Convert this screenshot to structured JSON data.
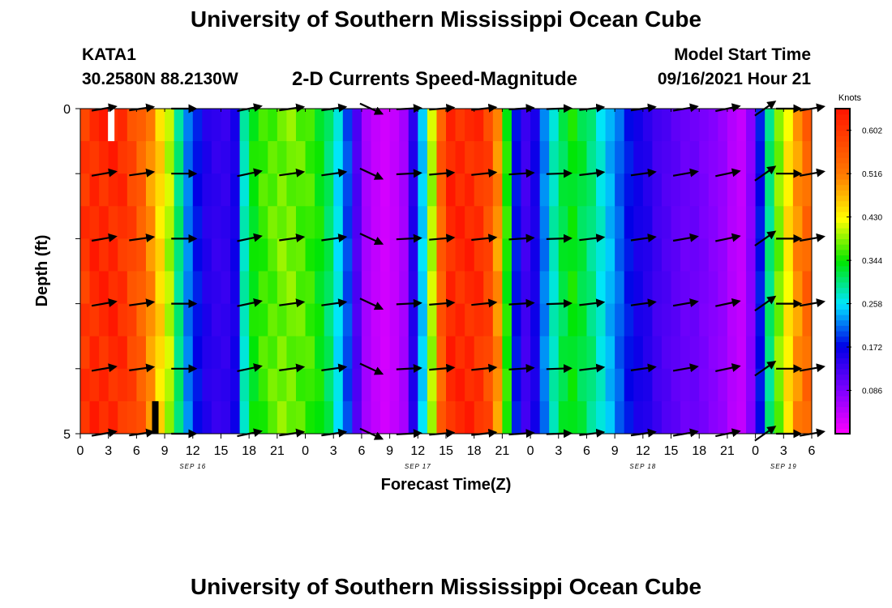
{
  "page": {
    "title_top": "University of Southern Mississippi Ocean Cube",
    "title_bottom": "University of Southern Mississippi Ocean Cube",
    "station": "KATA1",
    "coordinates": "30.2580N  88.2130W",
    "subtitle": "2-D Currents Speed-Magnitude",
    "model_start_label": "Model Start Time",
    "model_start_value": "09/16/2021 Hour 21"
  },
  "chart_data": {
    "type": "heatmap",
    "title": "2-D Currents Speed-Magnitude",
    "xlabel": "Forecast Time(Z)",
    "ylabel": "Depth (ft)",
    "x_hours": [
      0,
      3,
      6,
      9,
      12,
      15,
      18,
      21,
      24,
      27,
      30,
      33,
      36,
      39,
      42,
      45,
      48,
      51,
      54,
      57,
      60,
      63,
      66,
      69,
      72,
      75,
      78
    ],
    "x_tick_labels": [
      "0",
      "3",
      "6",
      "9",
      "12",
      "15",
      "18",
      "21",
      "0",
      "3",
      "6",
      "9",
      "12",
      "15",
      "18",
      "21",
      "0",
      "3",
      "6",
      "9",
      "12",
      "15",
      "18",
      "21",
      "0",
      "3",
      "6"
    ],
    "date_labels": [
      {
        "text": "SEP 16",
        "hour": 12
      },
      {
        "text": "SEP 17",
        "hour": 36
      },
      {
        "text": "SEP 18",
        "hour": 60
      },
      {
        "text": "SEP 19",
        "hour": 75
      }
    ],
    "xlim": [
      0,
      78
    ],
    "ylim": [
      0,
      5
    ],
    "y_axis_inverted": true,
    "y_tick_labels": [
      "0",
      "5"
    ],
    "y_tick_values": [
      0,
      1,
      2,
      3,
      4,
      5
    ],
    "colorbar": {
      "units": "Knots",
      "min": 0.0,
      "max": 0.645,
      "tick_values": [
        0.086,
        0.172,
        0.258,
        0.344,
        0.43,
        0.516,
        0.602
      ],
      "tick_labels": [
        "0.086",
        "0.172",
        "0.258",
        "0.344",
        "0.430",
        "0.516",
        "0.602"
      ]
    },
    "speed_profile": {
      "hours": [
        0,
        1,
        2,
        3,
        4,
        5,
        6,
        7,
        8,
        9,
        10,
        11,
        12,
        13,
        14,
        15,
        16,
        17,
        18,
        19,
        20,
        21,
        22,
        23,
        24,
        25,
        26,
        27,
        28,
        29,
        30,
        31,
        32,
        33,
        34,
        35,
        36,
        37,
        38,
        39,
        40,
        41,
        42,
        43,
        44,
        45,
        46,
        47,
        48,
        49,
        50,
        51,
        52,
        53,
        54,
        55,
        56,
        57,
        58,
        59,
        60,
        61,
        62,
        63,
        64,
        65,
        66,
        67,
        68,
        69,
        70,
        71,
        72,
        73,
        74,
        75,
        76,
        77,
        78
      ],
      "knots": [
        0.6,
        0.62,
        0.62,
        0.62,
        0.61,
        0.58,
        0.55,
        0.5,
        0.45,
        0.4,
        0.3,
        0.22,
        0.18,
        0.15,
        0.14,
        0.14,
        0.16,
        0.28,
        0.34,
        0.36,
        0.37,
        0.38,
        0.38,
        0.37,
        0.36,
        0.34,
        0.31,
        0.26,
        0.2,
        0.12,
        0.06,
        0.04,
        0.03,
        0.04,
        0.06,
        0.15,
        0.25,
        0.4,
        0.55,
        0.62,
        0.62,
        0.62,
        0.61,
        0.58,
        0.5,
        0.35,
        0.18,
        0.13,
        0.16,
        0.22,
        0.28,
        0.32,
        0.34,
        0.32,
        0.3,
        0.27,
        0.24,
        0.21,
        0.18,
        0.16,
        0.15,
        0.13,
        0.12,
        0.11,
        0.1,
        0.1,
        0.09,
        0.08,
        0.07,
        0.05,
        0.04,
        0.08,
        0.18,
        0.3,
        0.38,
        0.44,
        0.5,
        0.54,
        0.56
      ]
    },
    "vectors": {
      "hours": [
        2.5,
        6.5,
        11,
        18,
        22.5,
        27,
        31,
        35,
        38.5,
        43,
        47,
        51,
        54.5,
        60,
        64.5,
        69,
        73,
        75.5,
        78
      ],
      "depths": [
        0,
        1,
        2,
        3,
        4,
        5
      ],
      "dirs_deg": [
        10,
        8,
        0,
        12,
        8,
        8,
        -25,
        3,
        5,
        6,
        4,
        2,
        7,
        8,
        10,
        12,
        35,
        0,
        10
      ],
      "lengths": [
        1.0,
        1.0,
        1.0,
        1.0,
        1.0,
        1.0,
        1.0,
        1.0,
        1.0,
        1.0,
        1.0,
        1.0,
        1.0,
        1.0,
        1.0,
        1.0,
        1.0,
        1.0,
        1.0
      ]
    },
    "markers": [
      {
        "hour": 3.3,
        "depth_from": 0,
        "depth_to": 0.5,
        "color": "#ffffff"
      },
      {
        "hour": 8.0,
        "depth_from": 4.5,
        "depth_to": 5,
        "color": "#000000"
      }
    ]
  }
}
